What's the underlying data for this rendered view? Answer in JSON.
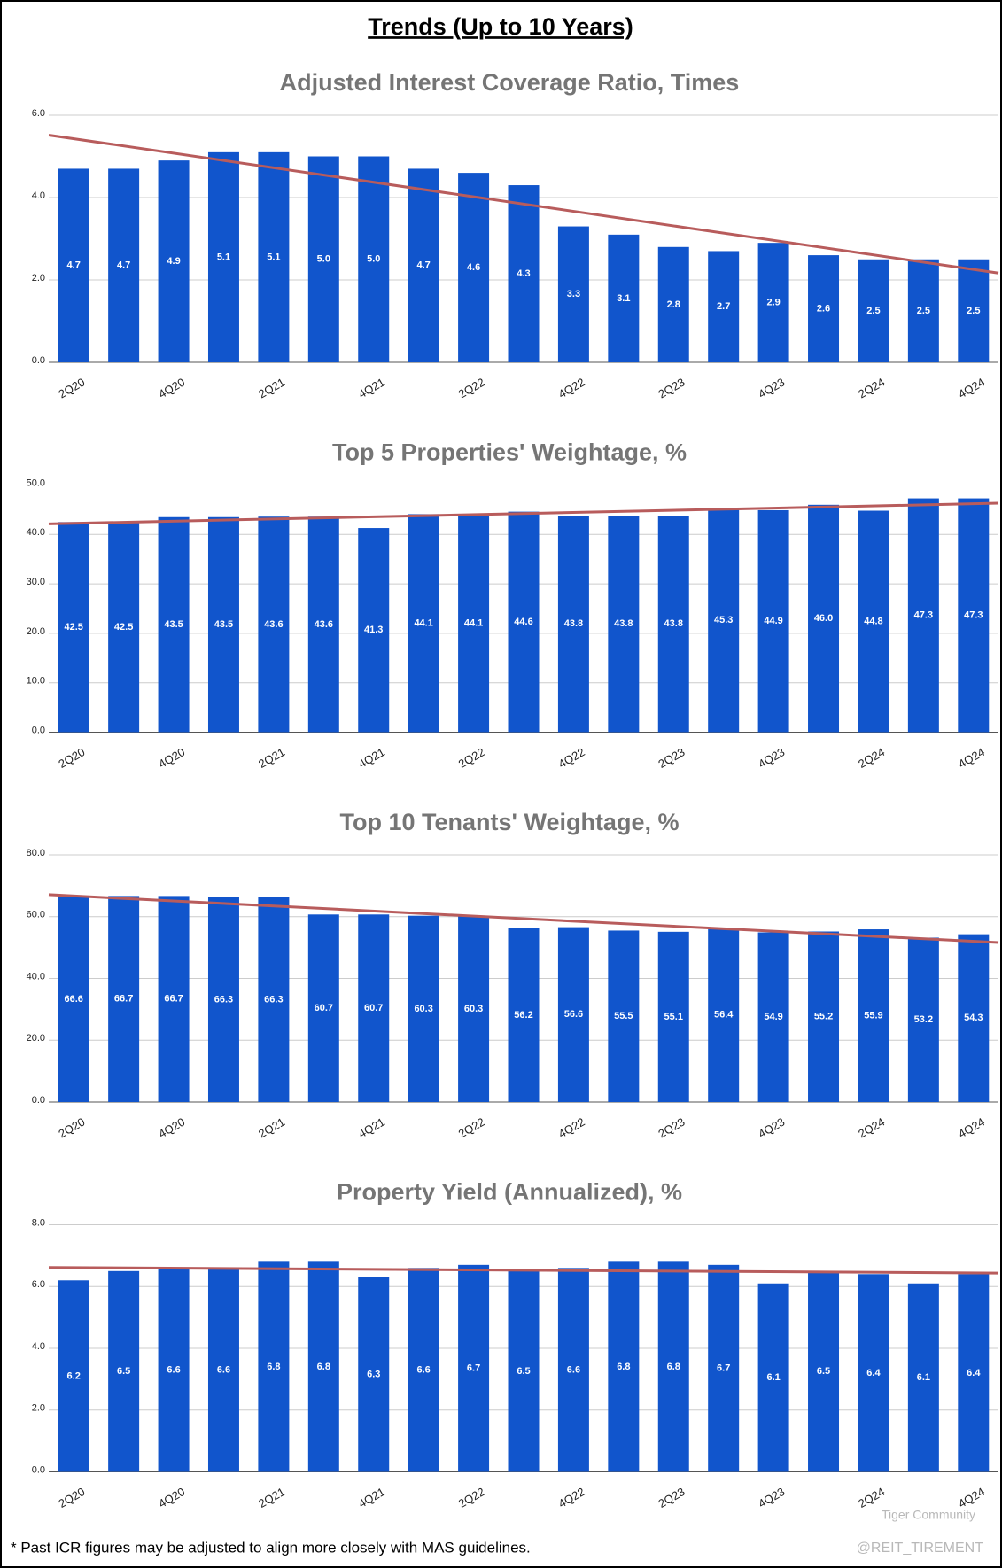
{
  "title": "Trends (Up to 10 Years)",
  "footnote": "* Past ICR figures may be adjusted to align more closely with MAS guidelines.",
  "watermark": "Tiger Community",
  "credit": "@REIT_TIREMENT",
  "chart_data": [
    {
      "type": "bar",
      "title": "Adjusted Interest Coverage Ratio, Times",
      "categories": [
        "2Q20",
        null,
        "4Q20",
        null,
        "2Q21",
        null,
        "4Q21",
        null,
        "2Q22",
        null,
        "4Q22",
        null,
        "2Q23",
        null,
        "4Q23",
        null,
        "2Q24",
        null,
        "4Q24"
      ],
      "values": [
        4.7,
        4.7,
        4.9,
        5.1,
        5.1,
        5.0,
        5.0,
        4.7,
        4.6,
        4.3,
        3.3,
        3.1,
        2.8,
        2.7,
        2.9,
        2.6,
        2.5,
        2.5,
        2.5
      ],
      "value_labels": [
        "4.7",
        "4.7",
        "4.9",
        "5.1",
        "5.1",
        "5.0",
        "5.0",
        "4.7",
        "4.6",
        "4.3",
        "3.3",
        "3.1",
        "2.8",
        "2.7",
        "2.9",
        "2.6",
        "2.5",
        "2.5",
        "2.5"
      ],
      "color": "#1155cc",
      "ylim": [
        0,
        6
      ],
      "yticks": [
        {
          "value": 0,
          "label": "0.0"
        },
        {
          "value": 2,
          "label": "2.0"
        },
        {
          "value": 4,
          "label": "4.0"
        },
        {
          "value": 6,
          "label": "6.0"
        }
      ],
      "grid": true,
      "trendline": true,
      "trendline_color": "#b85c5c"
    },
    {
      "type": "bar",
      "title": "Top 5 Properties' Weightage, %",
      "categories": [
        "2Q20",
        null,
        "4Q20",
        null,
        "2Q21",
        null,
        "4Q21",
        null,
        "2Q22",
        null,
        "4Q22",
        null,
        "2Q23",
        null,
        "4Q23",
        null,
        "2Q24",
        null,
        "4Q24"
      ],
      "values": [
        42.5,
        42.5,
        43.5,
        43.5,
        43.6,
        43.6,
        41.3,
        44.1,
        44.1,
        44.6,
        43.8,
        43.8,
        43.8,
        45.3,
        44.9,
        46.0,
        44.8,
        47.3,
        47.3
      ],
      "value_labels": [
        "42.5",
        "42.5",
        "43.5",
        "43.5",
        "43.6",
        "43.6",
        "41.3",
        "44.1",
        "44.1",
        "44.6",
        "43.8",
        "43.8",
        "43.8",
        "45.3",
        "44.9",
        "46.0",
        "44.8",
        "47.3",
        "47.3"
      ],
      "color": "#1155cc",
      "ylim": [
        0,
        50
      ],
      "yticks": [
        {
          "value": 0,
          "label": "0.0"
        },
        {
          "value": 10,
          "label": "10.0"
        },
        {
          "value": 20,
          "label": "20.0"
        },
        {
          "value": 30,
          "label": "30.0"
        },
        {
          "value": 40,
          "label": "40.0"
        },
        {
          "value": 50,
          "label": "50.0"
        }
      ],
      "grid": true,
      "trendline": true,
      "trendline_color": "#b85c5c"
    },
    {
      "type": "bar",
      "title": "Top 10 Tenants' Weightage, %",
      "categories": [
        "2Q20",
        null,
        "4Q20",
        null,
        "2Q21",
        null,
        "4Q21",
        null,
        "2Q22",
        null,
        "4Q22",
        null,
        "2Q23",
        null,
        "4Q23",
        null,
        "2Q24",
        null,
        "4Q24"
      ],
      "values": [
        66.6,
        66.7,
        66.7,
        66.3,
        66.3,
        60.7,
        60.7,
        60.3,
        60.3,
        56.2,
        56.6,
        55.5,
        55.1,
        56.4,
        54.9,
        55.2,
        55.9,
        53.2,
        54.3
      ],
      "value_labels": [
        "66.6",
        "66.7",
        "66.7",
        "66.3",
        "66.3",
        "60.7",
        "60.7",
        "60.3",
        "60.3",
        "56.2",
        "56.6",
        "55.5",
        "55.1",
        "56.4",
        "54.9",
        "55.2",
        "55.9",
        "53.2",
        "54.3"
      ],
      "color": "#1155cc",
      "ylim": [
        0,
        80
      ],
      "yticks": [
        {
          "value": 0,
          "label": "0.0"
        },
        {
          "value": 20,
          "label": "20.0"
        },
        {
          "value": 40,
          "label": "40.0"
        },
        {
          "value": 60,
          "label": "60.0"
        },
        {
          "value": 80,
          "label": "80.0"
        }
      ],
      "grid": true,
      "trendline": true,
      "trendline_color": "#b85c5c"
    },
    {
      "type": "bar",
      "title": "Property Yield (Annualized), %",
      "categories": [
        "2Q20",
        null,
        "4Q20",
        null,
        "2Q21",
        null,
        "4Q21",
        null,
        "2Q22",
        null,
        "4Q22",
        null,
        "2Q23",
        null,
        "4Q23",
        null,
        "2Q24",
        null,
        "4Q24"
      ],
      "values": [
        6.2,
        6.5,
        6.6,
        6.6,
        6.8,
        6.8,
        6.3,
        6.6,
        6.7,
        6.5,
        6.6,
        6.8,
        6.8,
        6.7,
        6.1,
        6.5,
        6.4,
        6.1,
        6.4
      ],
      "value_labels": [
        "6.2",
        "6.5",
        "6.6",
        "6.6",
        "6.8",
        "6.8",
        "6.3",
        "6.6",
        "6.7",
        "6.5",
        "6.6",
        "6.8",
        "6.8",
        "6.7",
        "6.1",
        "6.5",
        "6.4",
        "6.1",
        "6.4"
      ],
      "color": "#1155cc",
      "ylim": [
        0,
        8
      ],
      "yticks": [
        {
          "value": 0,
          "label": "0.0"
        },
        {
          "value": 2,
          "label": "2.0"
        },
        {
          "value": 4,
          "label": "4.0"
        },
        {
          "value": 6,
          "label": "6.0"
        },
        {
          "value": 8,
          "label": "8.0"
        }
      ],
      "grid": true,
      "trendline": true,
      "trendline_color": "#b85c5c"
    }
  ]
}
